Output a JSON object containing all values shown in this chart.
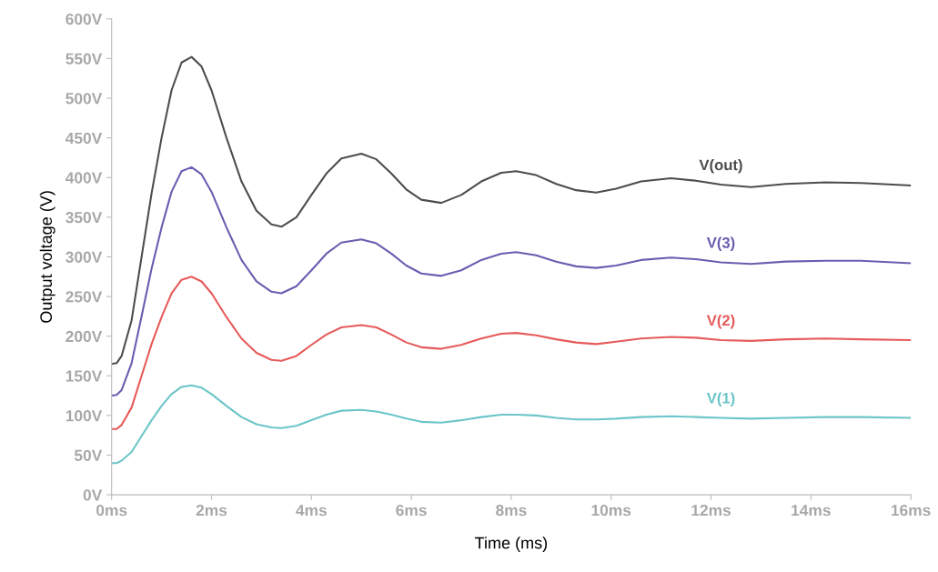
{
  "chart_data": {
    "type": "line",
    "xlabel": "Time (ms)",
    "ylabel": "Output voltage (V)",
    "x": [
      0,
      0.1,
      0.2,
      0.4,
      0.6,
      0.8,
      1.0,
      1.2,
      1.4,
      1.6,
      1.8,
      2.0,
      2.3,
      2.6,
      2.9,
      3.2,
      3.4,
      3.7,
      4.0,
      4.3,
      4.6,
      5.0,
      5.3,
      5.6,
      5.9,
      6.2,
      6.6,
      7.0,
      7.4,
      7.8,
      8.1,
      8.5,
      8.9,
      9.3,
      9.7,
      10.1,
      10.6,
      11.2,
      11.7,
      12.2,
      12.8,
      13.5,
      14.3,
      15.0,
      16
    ],
    "series": [
      {
        "name": "V(out)",
        "color": "#4d4d4d",
        "values": [
          165,
          166,
          175,
          220,
          300,
          380,
          450,
          510,
          545,
          552,
          540,
          510,
          450,
          395,
          358,
          341,
          338,
          350,
          378,
          405,
          424,
          430,
          423,
          405,
          385,
          372,
          368,
          378,
          395,
          406,
          408,
          403,
          392,
          384,
          381,
          386,
          395,
          399,
          396,
          391,
          388,
          392,
          394,
          393,
          390
        ]
      },
      {
        "name": "V(3)",
        "color": "#6a5db0",
        "values": [
          125,
          126,
          132,
          166,
          225,
          285,
          337,
          382,
          408,
          413,
          404,
          382,
          337,
          296,
          269,
          256,
          254,
          263,
          283,
          304,
          318,
          322,
          317,
          304,
          289,
          279,
          276,
          283,
          296,
          304,
          306,
          302,
          294,
          288,
          286,
          289,
          296,
          299,
          297,
          293,
          291,
          294,
          295,
          295,
          292
        ]
      },
      {
        "name": "V(2)",
        "color": "#e65a5a",
        "values": [
          83,
          83,
          88,
          110,
          150,
          190,
          224,
          254,
          271,
          275,
          269,
          254,
          224,
          197,
          179,
          170,
          169,
          175,
          189,
          202,
          211,
          214,
          211,
          202,
          192,
          186,
          184,
          189,
          197,
          203,
          204,
          201,
          196,
          192,
          190,
          193,
          197,
          199,
          198,
          195,
          194,
          196,
          197,
          196,
          195
        ]
      },
      {
        "name": "V(1)",
        "color": "#6cc5c9",
        "values": [
          40,
          40,
          43,
          54,
          74,
          94,
          112,
          127,
          136,
          138,
          135,
          127,
          112,
          98,
          89,
          85,
          84,
          87,
          94,
          101,
          106,
          107,
          105,
          101,
          96,
          92,
          91,
          94,
          98,
          101,
          101,
          100,
          97,
          95,
          95,
          96,
          98,
          99,
          98,
          97,
          96,
          97,
          98,
          98,
          97
        ]
      }
    ],
    "xlim": [
      0,
      16
    ],
    "ylim": [
      0,
      600
    ],
    "xticks": [
      {
        "value": 0,
        "label": "0ms"
      },
      {
        "value": 2,
        "label": "2ms"
      },
      {
        "value": 4,
        "label": "4ms"
      },
      {
        "value": 6,
        "label": "6ms"
      },
      {
        "value": 8,
        "label": "8ms"
      },
      {
        "value": 10,
        "label": "10ms"
      },
      {
        "value": 12,
        "label": "12ms"
      },
      {
        "value": 14,
        "label": "14ms"
      },
      {
        "value": 16,
        "label": "16ms"
      }
    ],
    "yticks": [
      {
        "value": 0,
        "label": "0V"
      },
      {
        "value": 50,
        "label": "50V"
      },
      {
        "value": 100,
        "label": "100V"
      },
      {
        "value": 150,
        "label": "150V"
      },
      {
        "value": 200,
        "label": "200V"
      },
      {
        "value": 250,
        "label": "250V"
      },
      {
        "value": 300,
        "label": "300V"
      },
      {
        "value": 350,
        "label": "350V"
      },
      {
        "value": 400,
        "label": "400V"
      },
      {
        "value": 450,
        "label": "450V"
      },
      {
        "value": 500,
        "label": "500V"
      },
      {
        "value": 550,
        "label": "550V"
      },
      {
        "value": 600,
        "label": "600V"
      }
    ],
    "grid": false,
    "legend": false,
    "line_style": "solid",
    "marker": "none"
  }
}
